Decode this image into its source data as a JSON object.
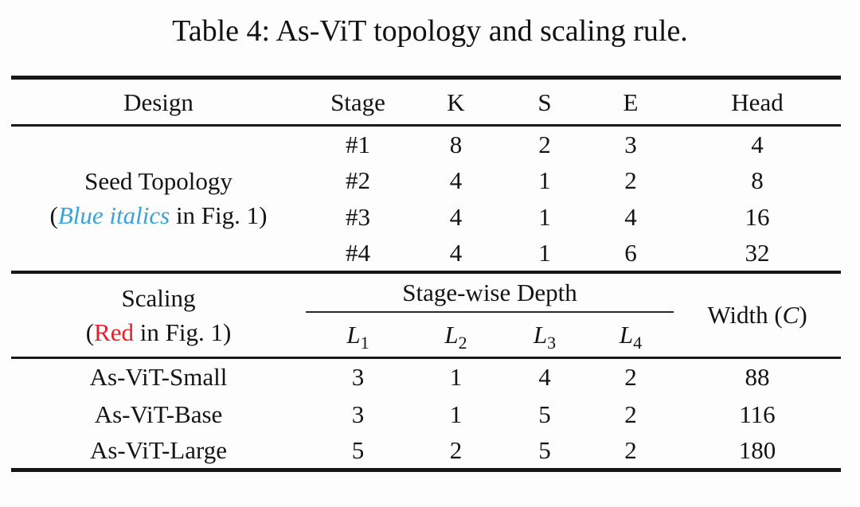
{
  "title": "Table 4: As-ViT topology and scaling rule.",
  "colors": {
    "accent_blue": "#3aa2da",
    "accent_red": "#e7202a"
  },
  "table": {
    "headers": {
      "design": "Design",
      "stage": "Stage",
      "k": "K",
      "s": "S",
      "e": "E",
      "head": "Head"
    },
    "seed": {
      "design_line1": "Seed Topology",
      "design_line2_open": "(",
      "design_line2_blue": "Blue italics",
      "design_line2_rest": " in Fig. 1)",
      "rows": [
        [
          "#1",
          "8",
          "2",
          "3",
          "4"
        ],
        [
          "#2",
          "4",
          "1",
          "2",
          "8"
        ],
        [
          "#3",
          "4",
          "1",
          "4",
          "16"
        ],
        [
          "#4",
          "4",
          "1",
          "6",
          "32"
        ]
      ]
    },
    "scaling": {
      "design_line1": "Scaling",
      "design_line2_open": "(",
      "design_line2_red": "Red",
      "design_line2_rest": " in Fig. 1)",
      "group_header": "Stage-wise Depth",
      "depth_cols": [
        {
          "letter": "L",
          "sub": "1"
        },
        {
          "letter": "L",
          "sub": "2"
        },
        {
          "letter": "L",
          "sub": "3"
        },
        {
          "letter": "L",
          "sub": "4"
        }
      ],
      "width_pre": "Width (",
      "width_var": "C",
      "width_post": ")",
      "rows": [
        [
          "As-ViT-Small",
          "3",
          "1",
          "4",
          "2",
          "88"
        ],
        [
          "As-ViT-Base",
          "3",
          "1",
          "5",
          "2",
          "116"
        ],
        [
          "As-ViT-Large",
          "5",
          "2",
          "5",
          "2",
          "180"
        ]
      ]
    }
  }
}
